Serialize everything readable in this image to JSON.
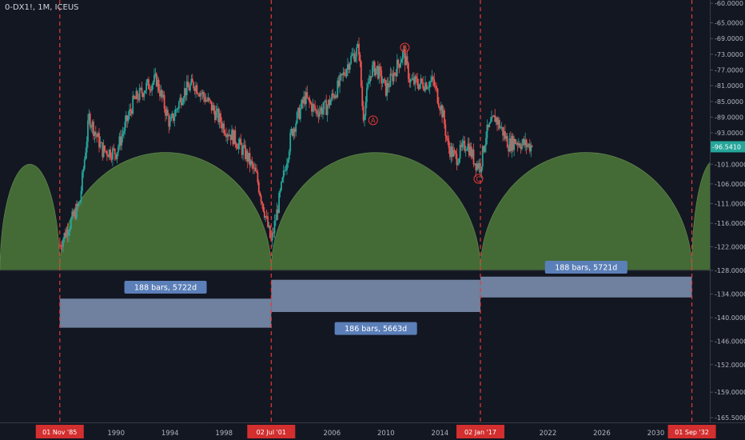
{
  "chart_data": {
    "type": "candlestick",
    "title": "0-DX1!, 1M, ICEUS",
    "y_axis": {
      "position": "right",
      "ylim": [
        -166.5,
        -60.0
      ],
      "tick_labels": [
        "-60.0000",
        "-65.0000",
        "-69.0000",
        "-73.0000",
        "-77.0000",
        "-81.0000",
        "-85.0000",
        "-89.0000",
        "-93.0000",
        "-97.0000",
        "-101.0000",
        "-106.0000",
        "-111.0000",
        "-116.0000",
        "-122.0000",
        "-128.0000",
        "-134.0000",
        "-140.0000",
        "-146.0000",
        "-152.0000",
        "-159.0000",
        "-165.5000"
      ]
    },
    "x_axis": {
      "range": [
        1981.4,
        2034.0
      ],
      "tick_labels": [
        "1990",
        "1994",
        "1998",
        "2006",
        "2010",
        "2014",
        "2022",
        "2026",
        "2030"
      ]
    },
    "grid": false,
    "last_price": {
      "label": "-96.5410",
      "value": -96.541,
      "color": "#26a69a"
    },
    "candle_colors": {
      "up": "#26a69a",
      "down": "#ef5350"
    },
    "series": [
      {
        "x": [
          1985.83,
          1987.3,
          1988.0,
          1989.0,
          1990.0,
          1991.3,
          1992.3,
          1993.0,
          1994.0,
          1995.0,
          1995.8,
          1997.0,
          1998.0,
          1998.8,
          1999.7,
          2000.4,
          2001.0,
          2001.5,
          2002.2,
          2003.0,
          2004.0,
          2004.8,
          2005.6,
          2006.5,
          2007.3,
          2008.0,
          2008.3,
          2008.9,
          2009.3,
          2010.0,
          2010.7,
          2011.3,
          2011.8,
          2012.6,
          2013.5,
          2014.2,
          2014.6,
          2015.2,
          2016.0,
          2016.6,
          2017.0,
          2017.4,
          2018.1,
          2018.7,
          2019.1,
          2019.6,
          2020.3,
          2020.9
        ],
        "y": [
          -121.5,
          -111.0,
          -89.0,
          -97.5,
          -98.0,
          -85.0,
          -81.0,
          -79.5,
          -91.0,
          -82.5,
          -80.5,
          -86.0,
          -91.5,
          -94.5,
          -99.0,
          -104.0,
          -113.0,
          -121.0,
          -108.0,
          -93.0,
          -84.0,
          -87.5,
          -86.5,
          -81.0,
          -74.5,
          -71.5,
          -89.0,
          -77.0,
          -76.5,
          -82.0,
          -77.0,
          -72.5,
          -80.0,
          -80.5,
          -80.0,
          -88.0,
          -96.5,
          -99.5,
          -95.5,
          -100.5,
          -101.5,
          -93.5,
          -89.0,
          -93.0,
          -96.0,
          -95.0,
          -96.0,
          -96.541
        ]
      }
    ],
    "cycle_arcs": [
      {
        "start": 1981.4,
        "end": 1985.83,
        "peak": -101.0
      },
      {
        "start": 1985.83,
        "end": 2001.5,
        "peak": -98.0
      },
      {
        "start": 2001.5,
        "end": 2017.0,
        "peak": -98.0
      },
      {
        "start": 2017.0,
        "end": 2032.67,
        "peak": -98.0
      },
      {
        "start": 2032.67,
        "end": 2036.0,
        "peak": -100.0
      }
    ],
    "cycle_baseline": -128.0,
    "cycle_lines": [
      {
        "x": 1985.83,
        "label": "01 Nov '85"
      },
      {
        "x": 2001.5,
        "label": "02 Jul '01"
      },
      {
        "x": 2017.0,
        "label": "02 Jan '17"
      },
      {
        "x": 2032.67,
        "label": "01 Sep '32"
      }
    ],
    "date_ranges": [
      {
        "x1": 1985.83,
        "x2": 2001.5,
        "y_top": -135.2,
        "y_bottom": -142.6,
        "label": "188 bars, 5722d",
        "label_y": -132.3
      },
      {
        "x1": 2001.5,
        "x2": 2017.0,
        "y_top": -130.4,
        "y_bottom": -138.6,
        "label": "186 bars, 5663d",
        "label_y": -142.8
      },
      {
        "x1": 2017.0,
        "x2": 2032.67,
        "y_top": -129.6,
        "y_bottom": -134.9,
        "label": "188 bars, 5721d",
        "label_y": -127.2
      }
    ],
    "annotations": [
      {
        "label": "A",
        "x": 2009.05,
        "y": -89.8
      },
      {
        "label": "B",
        "x": 2011.4,
        "y": -71.3
      },
      {
        "label": "C",
        "x": 2016.85,
        "y": -104.7
      }
    ],
    "colors": {
      "background": "#131722",
      "axis_text": "#b2b5be",
      "cycle_line": "#e53935",
      "arc_fill": "#4e7a3a",
      "range_fill": "#8fa6c8",
      "range_label_bg": "#5b7fb8",
      "annotation": "#e53935"
    }
  }
}
